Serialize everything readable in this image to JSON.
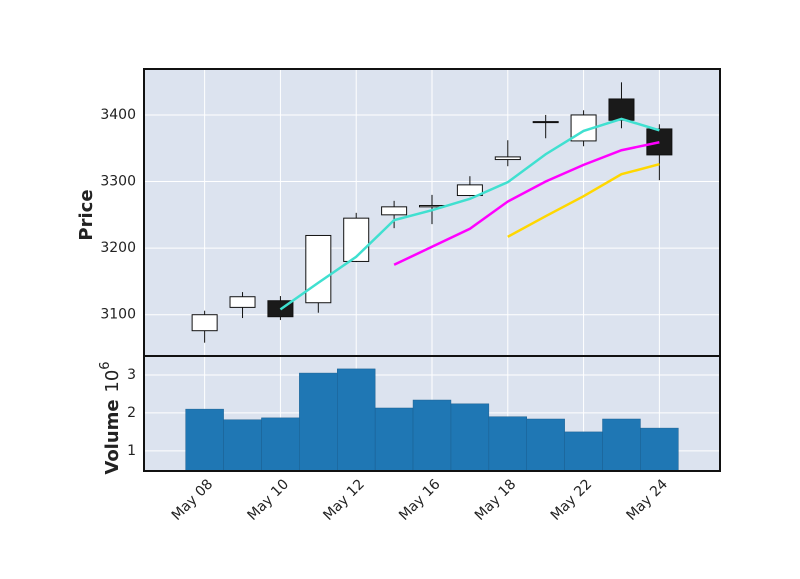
{
  "chart_data": [
    {
      "type": "candlestick",
      "ylabel": "Price",
      "categories": [
        "May 08",
        null,
        "May 10",
        null,
        "May 12",
        null,
        "May 16",
        null,
        "May 18",
        null,
        "May 22",
        null,
        "May 24"
      ],
      "open": [
        3076,
        3111,
        3121,
        3118,
        3180,
        3250,
        3262,
        3279,
        3333,
        3389,
        3361,
        3424,
        3379
      ],
      "high": [
        3106,
        3134,
        3128,
        3219,
        3253,
        3271,
        3280,
        3308,
        3362,
        3400,
        3407,
        3449,
        3386
      ],
      "low": [
        3058,
        3095,
        3092,
        3103,
        3179,
        3230,
        3236,
        3278,
        3323,
        3365,
        3353,
        3380,
        3302
      ],
      "close": [
        3100,
        3127,
        3097,
        3219,
        3245,
        3262,
        3264,
        3295,
        3337,
        3390,
        3400,
        3392,
        3340
      ],
      "up_color": "#ffffff",
      "down_color": "#1a1a1a",
      "series": [
        {
          "color": "#40e0d0",
          "values": [
            null,
            null,
            3108,
            3148,
            3187,
            3242,
            3257,
            3274,
            3299,
            3341,
            3376,
            3394,
            3377
          ]
        },
        {
          "color": "#ff00ff",
          "values": [
            null,
            null,
            null,
            null,
            null,
            3175,
            3202,
            3229,
            3270,
            3300,
            3325,
            3347,
            3359
          ]
        },
        {
          "color": "#ffd700",
          "values": [
            null,
            null,
            null,
            null,
            null,
            null,
            null,
            null,
            3217,
            3248,
            3278,
            3311,
            3326
          ]
        }
      ],
      "ylim": [
        3038,
        3469
      ],
      "yticks": [
        3100,
        3200,
        3300,
        3400
      ],
      "grid": true
    },
    {
      "type": "bar",
      "ylabel": "Volume",
      "ylabel_offset_base": "10",
      "ylabel_offset_exponent": "6",
      "values": [
        2.1,
        1.82,
        1.87,
        3.05,
        3.16,
        2.13,
        2.34,
        2.24,
        1.9,
        1.84,
        1.5,
        1.84,
        1.6
      ],
      "color": "#1f77b4",
      "ylim": [
        0.47,
        3.5
      ],
      "yticks": [
        1,
        2,
        3
      ],
      "grid": true
    }
  ]
}
